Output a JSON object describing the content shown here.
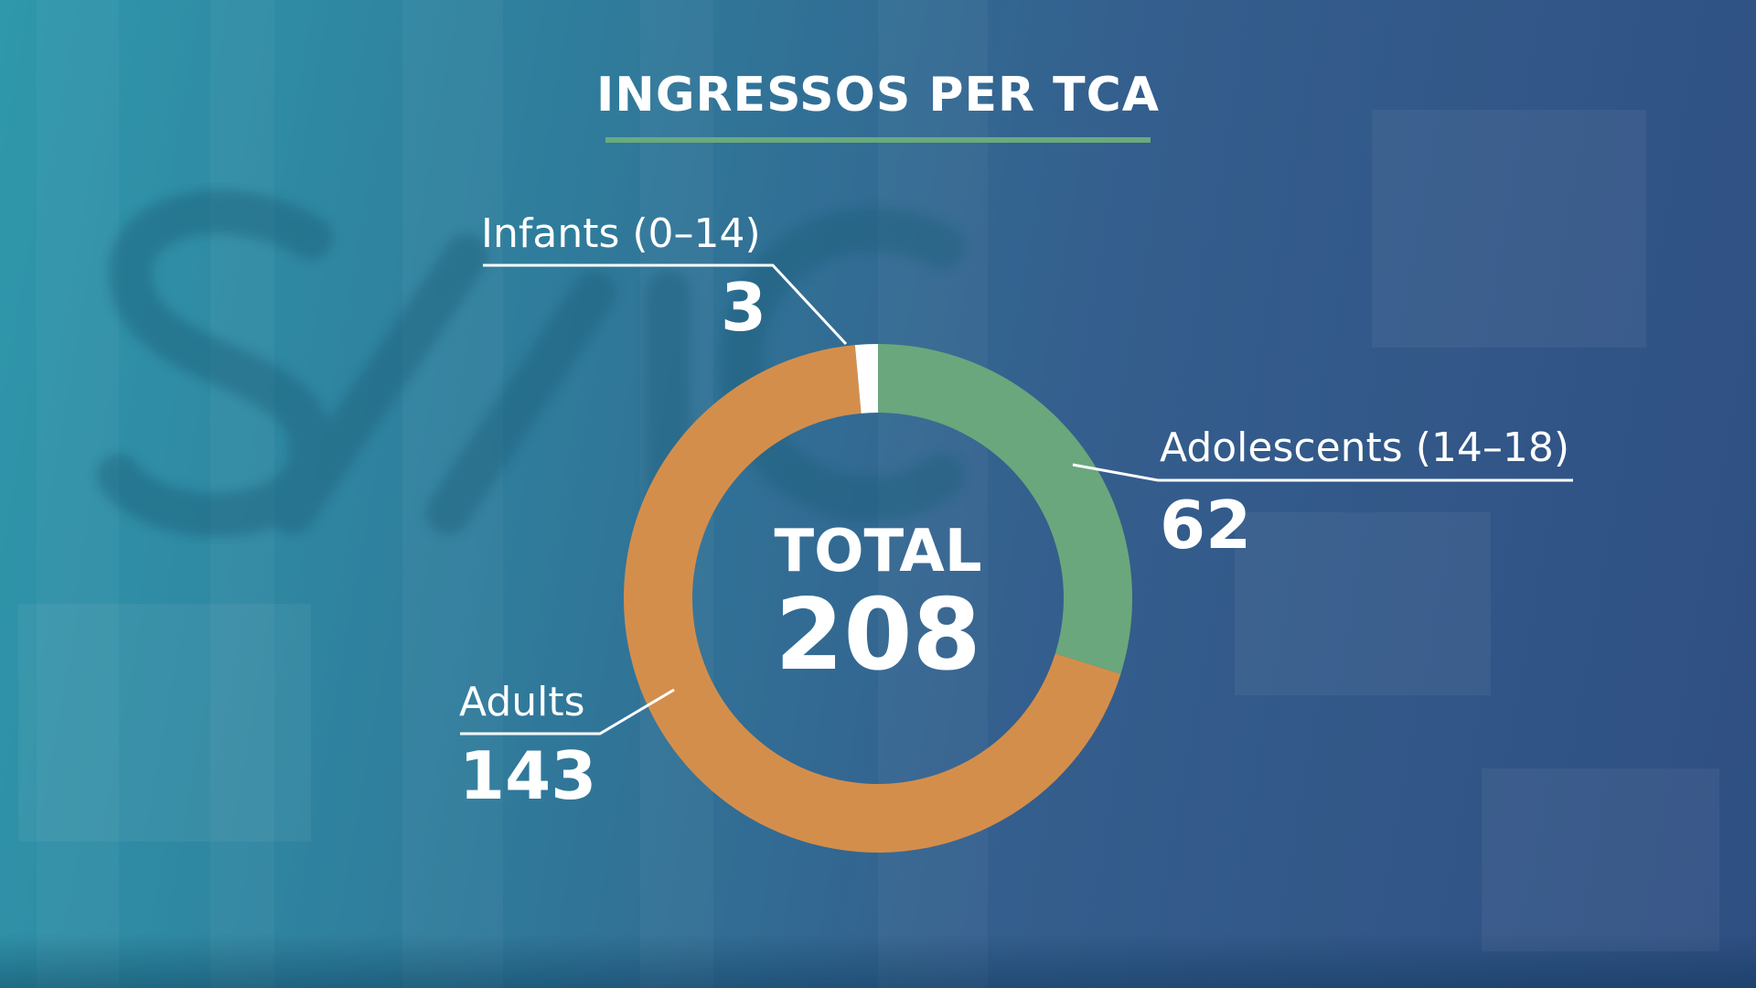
{
  "title": "INGRESSOS PER TCA",
  "total": {
    "label": "TOTAL",
    "value": "208"
  },
  "colors": {
    "infants": "#ffffff",
    "adolescents": "#6aa77c",
    "adults": "#d48e4c",
    "title_rule": "#6aaa7d",
    "background": "#2f7d9c"
  },
  "chart_data": {
    "type": "pie",
    "style": "donut",
    "title": "INGRESSOS PER TCA",
    "total": 208,
    "categories": [
      "Infants (0–14)",
      "Adolescents (14–18)",
      "Adults"
    ],
    "values": [
      3,
      62,
      143
    ],
    "labels": [
      {
        "name": "Infants (0–14)",
        "value": "3"
      },
      {
        "name": "Adolescents (14–18)",
        "value": "62"
      },
      {
        "name": "Adults",
        "value": "143"
      }
    ],
    "legend": "none"
  }
}
